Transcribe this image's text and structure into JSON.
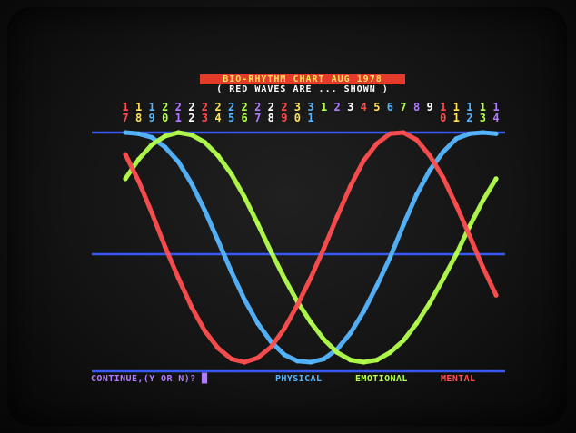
{
  "chart_data": {
    "type": "line",
    "title": "BIO-RHYTHM CHART AUG 1978",
    "subtitle": "( RED WAVES ARE ... SHOWN )",
    "x": [
      7,
      8,
      9,
      10,
      11,
      12,
      13,
      14,
      15,
      16,
      17,
      18,
      19,
      20,
      21,
      22,
      23,
      24,
      25,
      26,
      27,
      28,
      29,
      30,
      31,
      1,
      2,
      3,
      4
    ],
    "x_labels": [
      {
        "top": "1",
        "bottom": "7"
      },
      {
        "top": "1",
        "bottom": "8"
      },
      {
        "top": "1",
        "bottom": "9"
      },
      {
        "top": "2",
        "bottom": "0"
      },
      {
        "top": "2",
        "bottom": "1"
      },
      {
        "top": "2",
        "bottom": "2"
      },
      {
        "top": "2",
        "bottom": "3"
      },
      {
        "top": "2",
        "bottom": "4"
      },
      {
        "top": "2",
        "bottom": "5"
      },
      {
        "top": "2",
        "bottom": "6"
      },
      {
        "top": "2",
        "bottom": "7"
      },
      {
        "top": "2",
        "bottom": "8"
      },
      {
        "top": "2",
        "bottom": "9"
      },
      {
        "top": "3",
        "bottom": "0"
      },
      {
        "top": "3",
        "bottom": "1"
      },
      {
        "top": "1",
        "bottom": ""
      },
      {
        "top": "2",
        "bottom": ""
      },
      {
        "top": "3",
        "bottom": ""
      },
      {
        "top": "4",
        "bottom": ""
      },
      {
        "top": "5",
        "bottom": ""
      },
      {
        "top": "6",
        "bottom": ""
      },
      {
        "top": "7",
        "bottom": ""
      },
      {
        "top": "8",
        "bottom": ""
      },
      {
        "top": "9",
        "bottom": ""
      },
      {
        "top": "1",
        "bottom": "0"
      },
      {
        "top": "1",
        "bottom": "1"
      },
      {
        "top": "1",
        "bottom": "2"
      },
      {
        "top": "1",
        "bottom": "3"
      },
      {
        "top": "1",
        "bottom": "4"
      }
    ],
    "x_label_colors": [
      "#ff4e4e",
      "#ffe15a",
      "#54b6ff",
      "#b3ff4c",
      "#b27bff",
      "#ffffff"
    ],
    "ylim": [
      -1,
      1
    ],
    "grid": false,
    "reference_lines": [
      1,
      0,
      -1
    ],
    "series": [
      {
        "name": "PHYSICAL",
        "color": "#54b6ff",
        "values": [
          1.0,
          0.99,
          0.96,
          0.88,
          0.76,
          0.58,
          0.36,
          0.11,
          -0.16,
          -0.42,
          -0.64,
          -0.81,
          -0.93,
          -0.99,
          -1.0,
          -0.97,
          -0.88,
          -0.73,
          -0.53,
          -0.29,
          -0.03,
          0.24,
          0.49,
          0.69,
          0.84,
          0.95,
          0.99,
          1.0,
          0.99
        ]
      },
      {
        "name": "EMOTIONAL",
        "color": "#b3ff4c",
        "values": [
          0.62,
          0.78,
          0.9,
          0.97,
          1.0,
          0.98,
          0.92,
          0.81,
          0.66,
          0.47,
          0.25,
          0.02,
          -0.22,
          -0.44,
          -0.63,
          -0.79,
          -0.91,
          -0.98,
          -1.0,
          -0.98,
          -0.91,
          -0.8,
          -0.64,
          -0.45,
          -0.23,
          0.0,
          0.23,
          0.44,
          0.62
        ]
      },
      {
        "name": "MENTAL",
        "color": "#ff4e4e",
        "values": [
          0.82,
          0.6,
          0.34,
          0.06,
          -0.22,
          -0.49,
          -0.71,
          -0.87,
          -0.97,
          -1.0,
          -0.96,
          -0.86,
          -0.69,
          -0.47,
          -0.22,
          0.05,
          0.31,
          0.56,
          0.77,
          0.91,
          0.99,
          1.0,
          0.94,
          0.81,
          0.63,
          0.4,
          0.15,
          -0.12,
          -0.38
        ]
      }
    ]
  },
  "footer": {
    "prompt": "CONTINUE,(Y OR N)? ",
    "cursor": "█",
    "legend": [
      "PHYSICAL",
      "EMOTIONAL",
      "MENTAL"
    ]
  },
  "colors": {
    "background": "#000000",
    "axis_line": "#3a5cff"
  }
}
